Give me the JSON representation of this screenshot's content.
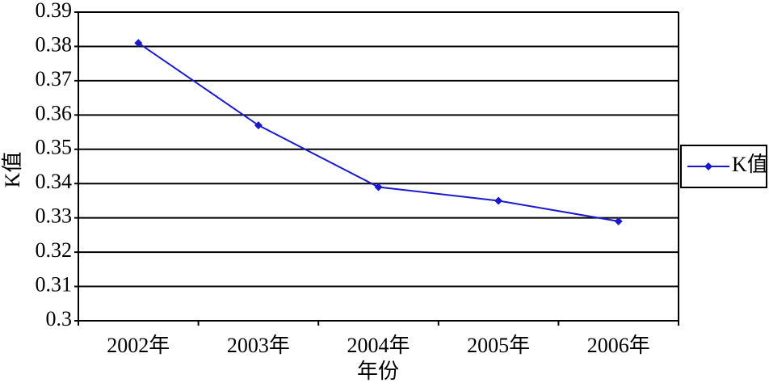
{
  "chart_data": {
    "type": "line",
    "x_label": "年份",
    "y_label": "K值",
    "categories": [
      "2002年",
      "2003年",
      "2004年",
      "2005年",
      "2006年"
    ],
    "series": [
      {
        "name": "K值",
        "color": "#1a1acc",
        "values": [
          0.381,
          0.357,
          0.339,
          0.335,
          0.329
        ]
      }
    ],
    "ylim": [
      0.3,
      0.39
    ],
    "yticks": [
      0.3,
      0.31,
      0.32,
      0.33,
      0.34,
      0.35,
      0.36,
      0.37,
      0.38,
      0.39
    ],
    "grid": true,
    "legend": "right"
  }
}
